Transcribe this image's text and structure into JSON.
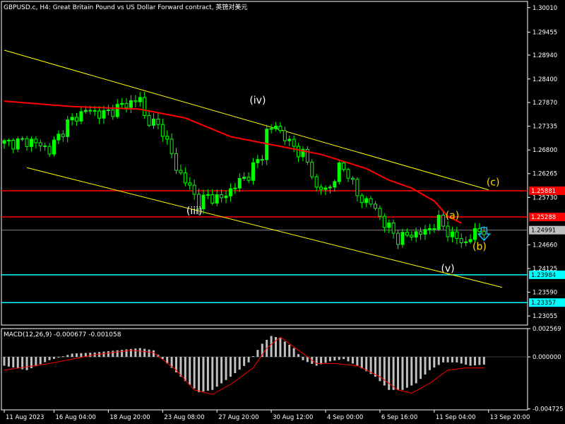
{
  "header": {
    "title": "GBPUSD.c, H4:  Great Britain Pound vs US Dollar Forward contract, 英镑对美元"
  },
  "colors": {
    "background": "#000000",
    "candle": "#00ff00",
    "ma": "#ff0000",
    "channel": "#ffff00",
    "hline_red": "#ff0000",
    "hline_cyan": "#00ffff",
    "wave_label_white": "#ffffff",
    "wave_label_gold": "#ffd700",
    "macd_hist": "#c0c0c0",
    "macd_signal": "#ff0000",
    "arrow": "#00bfff",
    "text": "#ffffff"
  },
  "chart_data": [
    {
      "type": "candlestick",
      "symbol": "GBPUSD.c",
      "timeframe": "H4",
      "ylim": [
        1.2285,
        1.3015
      ],
      "y_ticks": [
        "1.30010",
        "1.29455",
        "1.28940",
        "1.28400",
        "1.27870",
        "1.27335",
        "1.26800",
        "1.26265",
        "1.25730",
        "1.24660",
        "1.24125",
        "1.23590",
        "1.23055"
      ],
      "x_ticks": [
        "11 Aug 2023",
        "16 Aug 04:00",
        "18 Aug 20:00",
        "23 Aug 08:00",
        "27 Aug 20:00",
        "30 Aug 12:00",
        "4 Sep 00:00",
        "6 Sep 16:00",
        "11 Sep 04:00",
        "13 Sep 20:00"
      ],
      "close_path": [
        [
          0,
          1.2695
        ],
        [
          6,
          1.27
        ],
        [
          10,
          1.268
        ],
        [
          14,
          1.274
        ],
        [
          18,
          1.277
        ],
        [
          22,
          1.276
        ],
        [
          26,
          1.278
        ],
        [
          30,
          1.2795
        ],
        [
          31,
          1.2755
        ],
        [
          35,
          1.2725
        ],
        [
          38,
          1.264
        ],
        [
          41,
          1.2595
        ],
        [
          43,
          1.256
        ],
        [
          45,
          1.2575
        ],
        [
          48,
          1.257
        ],
        [
          51,
          1.26
        ],
        [
          54,
          1.2625
        ],
        [
          57,
          1.267
        ],
        [
          58,
          1.272
        ],
        [
          60,
          1.2735
        ],
        [
          63,
          1.2695
        ],
        [
          66,
          1.267
        ],
        [
          68,
          1.263
        ],
        [
          69,
          1.259
        ],
        [
          72,
          1.2595
        ],
        [
          74,
          1.264
        ],
        [
          76,
          1.263
        ],
        [
          78,
          1.2575
        ],
        [
          81,
          1.256
        ],
        [
          84,
          1.2515
        ],
        [
          87,
          1.248
        ],
        [
          90,
          1.249
        ],
        [
          93,
          1.2495
        ],
        [
          96,
          1.252
        ],
        [
          99,
          1.2485
        ],
        [
          102,
          1.247
        ],
        [
          104,
          1.2495
        ],
        [
          106,
          1.25
        ]
      ],
      "moving_average": [
        [
          0,
          1.279
        ],
        [
          15,
          1.2778
        ],
        [
          30,
          1.2772
        ],
        [
          40,
          1.2752
        ],
        [
          50,
          1.271
        ],
        [
          60,
          1.269
        ],
        [
          70,
          1.267
        ],
        [
          80,
          1.2638
        ],
        [
          85,
          1.2612
        ],
        [
          90,
          1.2594
        ],
        [
          95,
          1.2565
        ],
        [
          98,
          1.253
        ],
        [
          101,
          1.2515
        ]
      ],
      "channel_lines": [
        {
          "from": [
            0,
            1.2905
          ],
          "to": [
            107,
            1.259
          ]
        },
        {
          "from": [
            5,
            1.264
          ],
          "to": [
            110,
            1.237
          ]
        }
      ],
      "horizontal_lines": [
        {
          "value": 1.25881,
          "label": "1.25881",
          "color": "#ff0000"
        },
        {
          "value": 1.25288,
          "label": "1.25288",
          "color": "#ff0000"
        },
        {
          "value": 1.23984,
          "label": "1.23984",
          "color": "#00ffff"
        },
        {
          "value": 1.23357,
          "label": "1.23357",
          "color": "#00ffff"
        }
      ],
      "current_price": {
        "value": 1.24991,
        "label": "1.24991"
      },
      "wave_labels": [
        {
          "text": "(iv)",
          "at": [
            56,
            1.2785
          ],
          "color": "#ffffff"
        },
        {
          "text": "(iii)",
          "at": [
            42,
            1.2535
          ],
          "color": "#ffffff"
        },
        {
          "text": "(v)",
          "at": [
            98,
            1.2405
          ],
          "color": "#ffffff"
        },
        {
          "text": "(a)",
          "at": [
            99,
            1.2525
          ],
          "color": "#ffd700"
        },
        {
          "text": "(b)",
          "at": [
            105,
            1.2455
          ],
          "color": "#ffd700"
        },
        {
          "text": "(c)",
          "at": [
            108,
            1.26
          ],
          "color": "#ffd700"
        }
      ],
      "arrow": {
        "direction": "down",
        "at": [
          106,
          1.2492
        ]
      }
    },
    {
      "type": "bar",
      "title": "MACD(12,26,9) -0.000677 -0.001058",
      "ylim": [
        -0.00481,
        0.00257
      ],
      "y_ticks": [
        "0.002569",
        "0.000000",
        "-0.004725"
      ],
      "histogram_path": [
        [
          0,
          -0.0008
        ],
        [
          5,
          -0.0012
        ],
        [
          10,
          -0.0003
        ],
        [
          15,
          0.0003
        ],
        [
          20,
          0.0004
        ],
        [
          25,
          0.0006
        ],
        [
          30,
          0.0008
        ],
        [
          33,
          0.0006
        ],
        [
          36,
          -0.0006
        ],
        [
          40,
          -0.0022
        ],
        [
          43,
          -0.0032
        ],
        [
          46,
          -0.003
        ],
        [
          50,
          -0.0018
        ],
        [
          54,
          -0.0005
        ],
        [
          57,
          0.0012
        ],
        [
          59,
          0.0019
        ],
        [
          61,
          0.0017
        ],
        [
          64,
          0.0008
        ],
        [
          66,
          -0.0003
        ],
        [
          69,
          -0.0008
        ],
        [
          72,
          -0.0004
        ],
        [
          75,
          -0.0002
        ],
        [
          78,
          -0.0008
        ],
        [
          82,
          -0.0018
        ],
        [
          85,
          -0.003
        ],
        [
          88,
          -0.003
        ],
        [
          91,
          -0.0024
        ],
        [
          94,
          -0.0012
        ],
        [
          97,
          -0.0005
        ],
        [
          100,
          -0.0005
        ],
        [
          103,
          -0.0008
        ],
        [
          106,
          -0.0007
        ]
      ],
      "signal_path": [
        [
          0,
          -0.0012
        ],
        [
          10,
          -0.0006
        ],
        [
          20,
          0.0002
        ],
        [
          28,
          0.0006
        ],
        [
          33,
          0.0004
        ],
        [
          38,
          -0.0012
        ],
        [
          42,
          -0.003
        ],
        [
          46,
          -0.0034
        ],
        [
          50,
          -0.0025
        ],
        [
          55,
          -0.001
        ],
        [
          58,
          0.0008
        ],
        [
          61,
          0.0018
        ],
        [
          65,
          0.0006
        ],
        [
          69,
          -0.0006
        ],
        [
          73,
          -0.0006
        ],
        [
          78,
          -0.0008
        ],
        [
          83,
          -0.0018
        ],
        [
          87,
          -0.003
        ],
        [
          90,
          -0.0033
        ],
        [
          94,
          -0.0024
        ],
        [
          98,
          -0.0012
        ],
        [
          102,
          -0.001
        ],
        [
          106,
          -0.001
        ]
      ]
    }
  ]
}
